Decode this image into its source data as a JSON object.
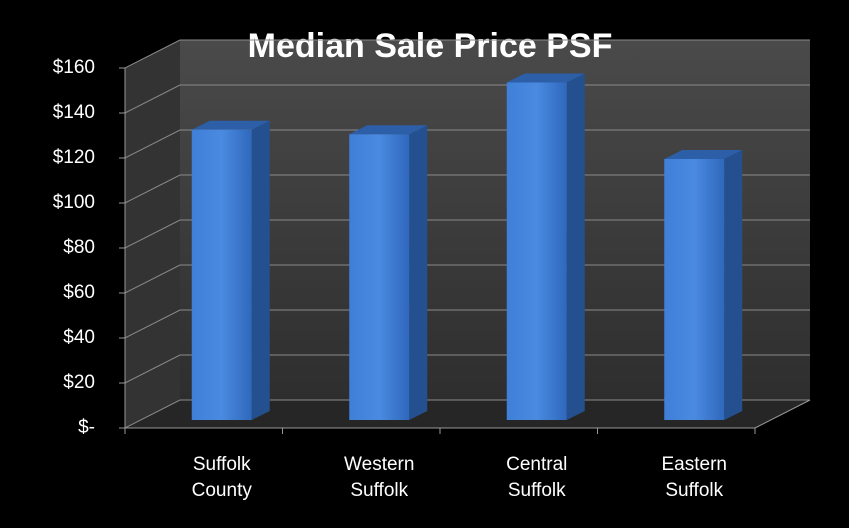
{
  "chart_data": {
    "type": "bar",
    "title": "Median Sale Price PSF",
    "categories": [
      "Suffolk County",
      "Western Suffolk",
      "Central Suffolk",
      "Eastern Suffolk"
    ],
    "values": [
      129,
      127,
      150,
      116
    ],
    "color": "#3a78d0",
    "ylim": [
      0,
      160
    ],
    "yticks": [
      {
        "value": 0,
        "label": "$-"
      },
      {
        "value": 20,
        "label": "$20"
      },
      {
        "value": 40,
        "label": "$40"
      },
      {
        "value": 60,
        "label": "$60"
      },
      {
        "value": 80,
        "label": "$80"
      },
      {
        "value": 100,
        "label": "$100"
      },
      {
        "value": 120,
        "label": "$120"
      },
      {
        "value": 140,
        "label": "$140"
      },
      {
        "value": 160,
        "label": "$160"
      }
    ],
    "grid": true
  }
}
